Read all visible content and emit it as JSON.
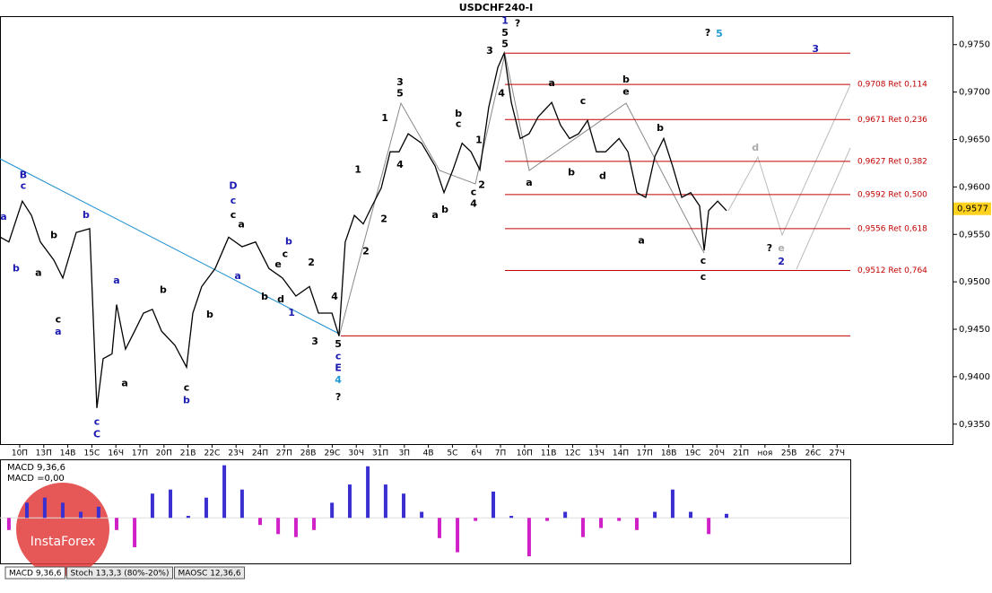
{
  "chart_data": {
    "type": "line",
    "title": "USDCHF240-I",
    "xlim": [
      -0.82,
      38.84
    ],
    "ylim": [
      0.9329,
      0.978
    ],
    "xticks": [
      {
        "value": 0,
        "label": "10П"
      },
      {
        "value": 1,
        "label": "13П"
      },
      {
        "value": 2,
        "label": "14В"
      },
      {
        "value": 3,
        "label": "15С"
      },
      {
        "value": 4,
        "label": "16Ч"
      },
      {
        "value": 5,
        "label": "17П"
      },
      {
        "value": 6,
        "label": "20П"
      },
      {
        "value": 7,
        "label": "21В"
      },
      {
        "value": 8,
        "label": "22С"
      },
      {
        "value": 9,
        "label": "23Ч"
      },
      {
        "value": 10,
        "label": "24П"
      },
      {
        "value": 11,
        "label": "27П"
      },
      {
        "value": 12,
        "label": "28В"
      },
      {
        "value": 13,
        "label": "29С"
      },
      {
        "value": 14,
        "label": "30Ч"
      },
      {
        "value": 15,
        "label": "31П"
      },
      {
        "value": 16,
        "label": "3П"
      },
      {
        "value": 17,
        "label": "4В"
      },
      {
        "value": 18,
        "label": "5С"
      },
      {
        "value": 19,
        "label": "6Ч"
      },
      {
        "value": 20,
        "label": "7П"
      },
      {
        "value": 21,
        "label": "10П"
      },
      {
        "value": 22,
        "label": "11В"
      },
      {
        "value": 23,
        "label": "12С"
      },
      {
        "value": 24,
        "label": "13Ч"
      },
      {
        "value": 25,
        "label": "14П"
      },
      {
        "value": 26,
        "label": "17П"
      },
      {
        "value": 27,
        "label": "18В"
      },
      {
        "value": 28,
        "label": "19С"
      },
      {
        "value": 29,
        "label": "20Ч"
      },
      {
        "value": 30,
        "label": "21П"
      },
      {
        "value": 31,
        "label": "ноя"
      },
      {
        "value": 32,
        "label": "25В"
      },
      {
        "value": 33,
        "label": "26С"
      },
      {
        "value": 34,
        "label": "27Ч"
      }
    ],
    "yticks": [
      {
        "value": 0.975,
        "label": "0,9750"
      },
      {
        "value": 0.97,
        "label": "0,9700"
      },
      {
        "value": 0.965,
        "label": "0,9650"
      },
      {
        "value": 0.96,
        "label": "0,9600"
      },
      {
        "value": 0.955,
        "label": "0,9550"
      },
      {
        "value": 0.95,
        "label": "0,9500"
      },
      {
        "value": 0.945,
        "label": "0,9450"
      },
      {
        "value": 0.94,
        "label": "0,9400"
      },
      {
        "value": 0.935,
        "label": "0,9350"
      }
    ],
    "series": [
      {
        "color": "#000000",
        "x": [
          -0.8,
          -0.45,
          0.11,
          0.49,
          0.86,
          1.42,
          1.79,
          2.35,
          2.91,
          3.21,
          3.47,
          3.84,
          4.03,
          4.4,
          4.78,
          5.15,
          5.52,
          5.9,
          6.46,
          6.94,
          7.2,
          7.57,
          8.13,
          8.69,
          9.25,
          9.81,
          10.37,
          10.93,
          11.49,
          12.05,
          12.43,
          12.99,
          13.28,
          13.54,
          13.92,
          14.29,
          14.66,
          15.04,
          15.41,
          15.78,
          16.16,
          16.72,
          17.28,
          17.65,
          18.02,
          18.4,
          18.77,
          19.14,
          19.51,
          19.89,
          20.15,
          20.45,
          20.82,
          21.19,
          21.57,
          22.13,
          22.5,
          22.87,
          23.25,
          23.62,
          23.99,
          24.37,
          24.93,
          25.3,
          25.67,
          26.04,
          26.42,
          26.79,
          27.16,
          27.54,
          27.91,
          28.28,
          28.47,
          28.66,
          29.03,
          29.4
        ],
        "values": [
          0.9547,
          0.9542,
          0.9585,
          0.957,
          0.9542,
          0.9523,
          0.9504,
          0.9552,
          0.9556,
          0.9367,
          0.9419,
          0.9424,
          0.9476,
          0.9429,
          0.9448,
          0.9467,
          0.9471,
          0.9448,
          0.9433,
          0.941,
          0.9467,
          0.9495,
          0.9514,
          0.9547,
          0.9537,
          0.9542,
          0.9514,
          0.9504,
          0.9485,
          0.9495,
          0.9467,
          0.9467,
          0.9443,
          0.9542,
          0.957,
          0.9561,
          0.958,
          0.9599,
          0.9637,
          0.9637,
          0.9656,
          0.9646,
          0.9622,
          0.9594,
          0.9618,
          0.9646,
          0.9637,
          0.9618,
          0.9684,
          0.9726,
          0.9741,
          0.9689,
          0.9651,
          0.9656,
          0.9674,
          0.9689,
          0.9665,
          0.9651,
          0.9656,
          0.967,
          0.9637,
          0.9637,
          0.9651,
          0.9637,
          0.9594,
          0.9589,
          0.9632,
          0.9651,
          0.9622,
          0.9589,
          0.9594,
          0.958,
          0.9533,
          0.9575,
          0.9585,
          0.9575
        ]
      }
    ],
    "fib_levels": [
      {
        "value": 0.9708,
        "label": "0,9708 Ret 0,114"
      },
      {
        "value": 0.9671,
        "label": "0,9671 Ret 0,236"
      },
      {
        "value": 0.9627,
        "label": "0,9627 Ret 0,382"
      },
      {
        "value": 0.9592,
        "label": "0,9592 Ret 0,500"
      },
      {
        "value": 0.9556,
        "label": "0,9556 Ret 0,618"
      },
      {
        "value": 0.9512,
        "label": "0,9512 Ret 0,764"
      }
    ],
    "fib_color": "#c00000",
    "levels": [
      0.9741,
      0.9443
    ],
    "last_price": {
      "value": 0.9577,
      "label": "0,9577"
    },
    "annotations": [
      {
        "text": "a",
        "x": -0.67,
        "y": 0.9568,
        "color": "#1a1ab0"
      },
      {
        "text": "b",
        "x": -0.15,
        "y": 0.9514,
        "color": "#1a1ab0"
      },
      {
        "text": "B",
        "x": 0.15,
        "y": 0.9612,
        "color": "#1a1ab0"
      },
      {
        "text": "c",
        "x": 0.15,
        "y": 0.9601,
        "color": "#1a1ab0"
      },
      {
        "text": "a",
        "x": 0.78,
        "y": 0.9509,
        "color": "#000000"
      },
      {
        "text": "b",
        "x": 1.42,
        "y": 0.9549,
        "color": "#000000"
      },
      {
        "text": "c",
        "x": 1.6,
        "y": 0.946,
        "color": "#000000"
      },
      {
        "text": "a",
        "x": 1.6,
        "y": 0.9447,
        "color": "#1a1ab0"
      },
      {
        "text": "b",
        "x": 2.76,
        "y": 0.957,
        "color": "#1a1ab0"
      },
      {
        "text": "a",
        "x": 4.03,
        "y": 0.9501,
        "color": "#1a1ab0"
      },
      {
        "text": "b",
        "x": 5.97,
        "y": 0.9491,
        "color": "#000000"
      },
      {
        "text": "a",
        "x": 4.37,
        "y": 0.9393,
        "color": "#000000"
      },
      {
        "text": "c",
        "x": 3.21,
        "y": 0.9352,
        "color": "#1a1ab0"
      },
      {
        "text": "C",
        "x": 3.21,
        "y": 0.9339,
        "color": "#1a1ab0"
      },
      {
        "text": "c",
        "x": 6.94,
        "y": 0.9388,
        "color": "#000000"
      },
      {
        "text": "b",
        "x": 6.94,
        "y": 0.9375,
        "color": "#1a1ab0"
      },
      {
        "text": "b",
        "x": 7.91,
        "y": 0.9465,
        "color": "#000000"
      },
      {
        "text": "a",
        "x": 9.07,
        "y": 0.9506,
        "color": "#1a1ab0"
      },
      {
        "text": "D",
        "x": 8.88,
        "y": 0.9601,
        "color": "#1a1ab0"
      },
      {
        "text": "c",
        "x": 8.88,
        "y": 0.9585,
        "color": "#1a1ab0"
      },
      {
        "text": "c",
        "x": 8.88,
        "y": 0.957,
        "color": "#000000"
      },
      {
        "text": "a",
        "x": 9.22,
        "y": 0.956,
        "color": "#000000"
      },
      {
        "text": "b",
        "x": 11.19,
        "y": 0.9542,
        "color": "#1a1ab0"
      },
      {
        "text": "c",
        "x": 11.04,
        "y": 0.9529,
        "color": "#000000"
      },
      {
        "text": "e",
        "x": 10.75,
        "y": 0.9518,
        "color": "#000000"
      },
      {
        "text": "b",
        "x": 10.19,
        "y": 0.9484,
        "color": "#000000"
      },
      {
        "text": "d",
        "x": 10.86,
        "y": 0.9481,
        "color": "#000000"
      },
      {
        "text": "1",
        "x": 11.31,
        "y": 0.9467,
        "color": "#1a1ab0"
      },
      {
        "text": "2",
        "x": 12.13,
        "y": 0.952,
        "color": "#000000"
      },
      {
        "text": "3",
        "x": 12.28,
        "y": 0.9437,
        "color": "#000000"
      },
      {
        "text": "4",
        "x": 13.1,
        "y": 0.9484,
        "color": "#000000"
      },
      {
        "text": "5",
        "x": 13.25,
        "y": 0.9434,
        "color": "#000000"
      },
      {
        "text": "c",
        "x": 13.25,
        "y": 0.9421,
        "color": "#1a1ab0"
      },
      {
        "text": "E",
        "x": 13.25,
        "y": 0.9409,
        "color": "#1a1ab0"
      },
      {
        "text": "4",
        "x": 13.25,
        "y": 0.9396,
        "color": "#1e9ad0"
      },
      {
        "text": "?",
        "x": 13.25,
        "y": 0.9378,
        "color": "#000000"
      },
      {
        "text": "1",
        "x": 14.07,
        "y": 0.9618,
        "color": "#000000"
      },
      {
        "text": "2",
        "x": 14.4,
        "y": 0.9532,
        "color": "#000000"
      },
      {
        "text": "2",
        "x": 15.15,
        "y": 0.9566,
        "color": "#000000"
      },
      {
        "text": "1",
        "x": 15.19,
        "y": 0.9672,
        "color": "#000000"
      },
      {
        "text": "3",
        "x": 15.82,
        "y": 0.971,
        "color": "#000000"
      },
      {
        "text": "5",
        "x": 15.82,
        "y": 0.9698,
        "color": "#000000"
      },
      {
        "text": "4",
        "x": 15.82,
        "y": 0.9623,
        "color": "#000000"
      },
      {
        "text": "a",
        "x": 17.28,
        "y": 0.957,
        "color": "#000000"
      },
      {
        "text": "b",
        "x": 17.69,
        "y": 0.9576,
        "color": "#000000"
      },
      {
        "text": "b",
        "x": 18.25,
        "y": 0.9677,
        "color": "#000000"
      },
      {
        "text": "c",
        "x": 18.25,
        "y": 0.9666,
        "color": "#000000"
      },
      {
        "text": "c",
        "x": 18.88,
        "y": 0.9594,
        "color": "#000000"
      },
      {
        "text": "4",
        "x": 18.88,
        "y": 0.9582,
        "color": "#000000"
      },
      {
        "text": "1",
        "x": 19.1,
        "y": 0.9649,
        "color": "#000000"
      },
      {
        "text": "2",
        "x": 19.22,
        "y": 0.9602,
        "color": "#000000"
      },
      {
        "text": "3",
        "x": 19.55,
        "y": 0.9743,
        "color": "#000000"
      },
      {
        "text": "1",
        "x": 20.19,
        "y": 0.9775,
        "color": "#1a1ab0"
      },
      {
        "text": "5",
        "x": 20.19,
        "y": 0.9762,
        "color": "#000000"
      },
      {
        "text": "5",
        "x": 20.19,
        "y": 0.975,
        "color": "#000000"
      },
      {
        "text": "?",
        "x": 20.71,
        "y": 0.9772,
        "color": "#000000"
      },
      {
        "text": "4",
        "x": 20.04,
        "y": 0.9698,
        "color": "#000000"
      },
      {
        "text": "a",
        "x": 21.19,
        "y": 0.9604,
        "color": "#000000"
      },
      {
        "text": "a",
        "x": 22.13,
        "y": 0.9709,
        "color": "#000000"
      },
      {
        "text": "b",
        "x": 22.95,
        "y": 0.9615,
        "color": "#000000"
      },
      {
        "text": "c",
        "x": 23.43,
        "y": 0.969,
        "color": "#000000"
      },
      {
        "text": "d",
        "x": 24.25,
        "y": 0.9611,
        "color": "#000000"
      },
      {
        "text": "b",
        "x": 25.22,
        "y": 0.9713,
        "color": "#000000"
      },
      {
        "text": "e",
        "x": 25.22,
        "y": 0.97,
        "color": "#000000"
      },
      {
        "text": "b",
        "x": 26.64,
        "y": 0.9662,
        "color": "#000000"
      },
      {
        "text": "a",
        "x": 25.86,
        "y": 0.9543,
        "color": "#000000"
      },
      {
        "text": "c",
        "x": 28.43,
        "y": 0.9522,
        "color": "#000000"
      },
      {
        "text": "c",
        "x": 28.43,
        "y": 0.9505,
        "color": "#000000"
      },
      {
        "text": "d",
        "x": 30.6,
        "y": 0.9641,
        "color": "#aaaaaa"
      },
      {
        "text": "?",
        "x": 31.19,
        "y": 0.9535,
        "color": "#000000"
      },
      {
        "text": "e",
        "x": 31.68,
        "y": 0.9535,
        "color": "#aaaaaa"
      },
      {
        "text": "2",
        "x": 31.68,
        "y": 0.9521,
        "color": "#1a1ab0"
      },
      {
        "text": "?",
        "x": 28.62,
        "y": 0.9762,
        "color": "#000000"
      },
      {
        "text": "5",
        "x": 29.1,
        "y": 0.9761,
        "color": "#1e9ad0"
      },
      {
        "text": "3",
        "x": 33.1,
        "y": 0.9745,
        "color": "#1a1ab0"
      }
    ],
    "macd": {
      "labels": [
        "MACD 9,36,6",
        "MACD =0,00"
      ],
      "ylim": [
        -0.0045,
        0.0057
      ],
      "color_up": "#3a2fd0",
      "color_down": "#d020c8",
      "x": [
        -0.45,
        0.3,
        1.04,
        1.79,
        2.54,
        3.28,
        4.03,
        4.78,
        5.52,
        6.27,
        7.01,
        7.76,
        8.51,
        9.25,
        10,
        10.75,
        11.49,
        12.24,
        12.99,
        13.73,
        14.48,
        15.22,
        15.97,
        16.72,
        17.46,
        18.21,
        18.96,
        19.7,
        20.45,
        21.19,
        21.94,
        22.69,
        23.43,
        24.18,
        24.93,
        25.67,
        26.42,
        27.16,
        27.91,
        28.66,
        29.4
      ],
      "values": [
        -0.0012,
        0.0015,
        0.002,
        0.0015,
        0.0006,
        0.0011,
        -0.0012,
        -0.0029,
        0.0024,
        0.0028,
        0.0002,
        0.002,
        0.0052,
        0.0028,
        -0.0007,
        -0.0016,
        -0.0019,
        -0.0012,
        0.0015,
        0.0033,
        0.0051,
        0.0033,
        0.0024,
        0.0006,
        -0.002,
        -0.0034,
        -0.0003,
        0.0026,
        0.0002,
        -0.0038,
        -0.0003,
        0.0006,
        -0.0019,
        -0.001,
        -0.0003,
        -0.0012,
        0.0006,
        0.0028,
        0.0006,
        -0.0016,
        0.0004
      ]
    },
    "tabs": [
      "MACD 9,36,6",
      "Stoch 13,3,3 (80%-20%)",
      "MAOSC 12,36,6"
    ],
    "watermark": "InstaForex"
  }
}
